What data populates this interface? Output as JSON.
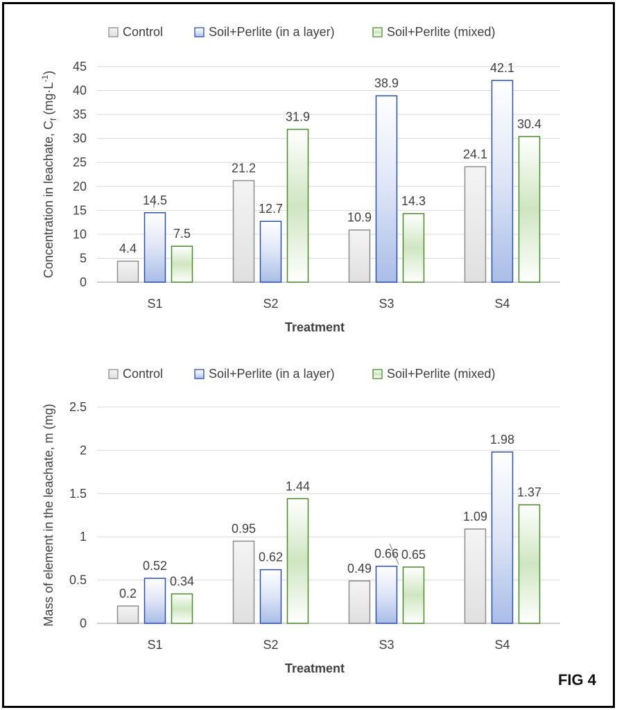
{
  "figure_label": "FIG 4",
  "chart_data": [
    {
      "type": "bar",
      "categories": [
        "S1",
        "S2",
        "S3",
        "S4"
      ],
      "series": [
        {
          "name": "Control",
          "values": [
            4.4,
            21.2,
            10.9,
            24.1
          ]
        },
        {
          "name": "Soil+Perlite (in a layer)",
          "values": [
            14.5,
            12.7,
            38.9,
            42.1
          ]
        },
        {
          "name": "Soil+Perlite (mixed)",
          "values": [
            7.5,
            31.9,
            14.3,
            30.4
          ]
        }
      ],
      "data_labels": [
        [
          "4.4",
          "21.2",
          "10.9",
          "24.1"
        ],
        [
          "14.5",
          "12.7",
          "38.9",
          "42.1"
        ],
        [
          "7.5",
          "31.9",
          "14.3",
          "30.4"
        ]
      ],
      "xlabel": "Treatment",
      "ylabel": "Concentration in leachate, C",
      "ylabel_sub": "f",
      "ylabel_unit": " (mg·L",
      "ylabel_sup": "-1",
      "ylabel_end": ")",
      "ylim": [
        0,
        45
      ],
      "yticks": [
        "0",
        "5",
        "10",
        "15",
        "20",
        "25",
        "30",
        "35",
        "40",
        "45"
      ],
      "grid": true,
      "legend_position": "top"
    },
    {
      "type": "bar",
      "categories": [
        "S1",
        "S2",
        "S3",
        "S4"
      ],
      "series": [
        {
          "name": "Control",
          "values": [
            0.2,
            0.95,
            0.49,
            1.09
          ]
        },
        {
          "name": "Soil+Perlite (in a layer)",
          "values": [
            0.52,
            0.62,
            0.66,
            1.98
          ]
        },
        {
          "name": "Soil+Perlite (mixed)",
          "values": [
            0.34,
            1.44,
            0.65,
            1.37
          ]
        }
      ],
      "data_labels": [
        [
          "0.2",
          "0.95",
          "0.49",
          "1.09"
        ],
        [
          "0.52",
          "0.62",
          "0.66",
          "1.98"
        ],
        [
          "0.34",
          "1.44",
          "0.65",
          "1.37"
        ]
      ],
      "xlabel": "Treatment",
      "ylabel": "Mass of element in the leachate, m (mg)",
      "ylim": [
        0,
        2.5
      ],
      "yticks": [
        "0",
        "0.5",
        "1",
        "1.5",
        "2",
        "2.5"
      ],
      "grid": true,
      "legend_position": "top"
    }
  ],
  "colors": {
    "control_fill": "#ebebeb",
    "control_stroke": "#8c8c8c",
    "layer_fill_top": "#c9d4ee",
    "layer_stroke": "#2b4fae",
    "mixed_fill_top": "#b6d6a1",
    "mixed_stroke": "#4b8a2b",
    "grid": "#d9d9d9",
    "axis": "#bfbfbf",
    "text": "#404040"
  }
}
